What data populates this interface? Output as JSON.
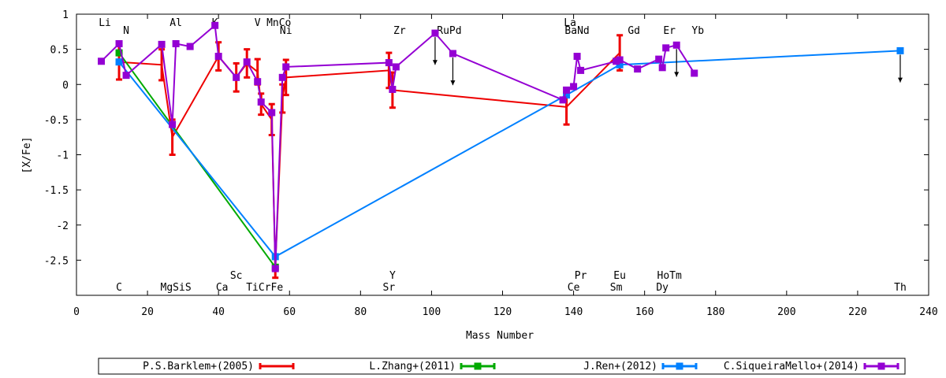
{
  "chart_data": {
    "type": "line",
    "xlabel": "Mass Number",
    "ylabel": "[X/Fe]",
    "xlim": [
      0,
      240
    ],
    "ylim": [
      -3,
      1
    ],
    "xticks": [
      0,
      20,
      40,
      60,
      80,
      100,
      120,
      140,
      160,
      180,
      200,
      220,
      240
    ],
    "yticks": [
      1,
      0.5,
      0,
      -0.5,
      -1,
      -1.5,
      -2,
      -2.5
    ],
    "ytick_labels": [
      "1",
      "0.5",
      "0",
      "-0.5",
      "-1",
      "-1.5",
      "-2",
      "-2.5"
    ],
    "legend_position": "bottom",
    "element_labels_top": [
      {
        "text": "Li",
        "x": 8,
        "row": 1
      },
      {
        "text": "N",
        "x": 14,
        "row": 2
      },
      {
        "text": "Al",
        "x": 28,
        "row": 1
      },
      {
        "text": "K",
        "x": 39,
        "row": 1
      },
      {
        "text": "V",
        "x": 51,
        "row": 1
      },
      {
        "text": "MnCo",
        "x": 57,
        "row": 1
      },
      {
        "text": "Ni",
        "x": 59,
        "row": 2
      },
      {
        "text": "Zr",
        "x": 91,
        "row": 2
      },
      {
        "text": "RuPd",
        "x": 105,
        "row": 2
      },
      {
        "text": "La",
        "x": 139,
        "row": 1
      },
      {
        "text": "BaNd",
        "x": 141,
        "row": 2
      },
      {
        "text": "Gd",
        "x": 157,
        "row": 2
      },
      {
        "text": "Er",
        "x": 167,
        "row": 2
      },
      {
        "text": "Yb",
        "x": 175,
        "row": 2
      }
    ],
    "element_labels_bottom": [
      {
        "text": "Sc",
        "x": 45,
        "row": 1
      },
      {
        "text": "Y",
        "x": 89,
        "row": 1
      },
      {
        "text": "Pr",
        "x": 142,
        "row": 1
      },
      {
        "text": "Eu",
        "x": 153,
        "row": 1
      },
      {
        "text": "HoTm",
        "x": 167,
        "row": 1
      },
      {
        "text": "C",
        "x": 12,
        "row": 2
      },
      {
        "text": "MgSiS",
        "x": 28,
        "row": 2
      },
      {
        "text": "Ca",
        "x": 41,
        "row": 2
      },
      {
        "text": "TiCrFe",
        "x": 53,
        "row": 2
      },
      {
        "text": "Sr",
        "x": 88,
        "row": 2
      },
      {
        "text": "Ce",
        "x": 140,
        "row": 2
      },
      {
        "text": "Sm",
        "x": 152,
        "row": 2
      },
      {
        "text": "Dy",
        "x": 165,
        "row": 2
      },
      {
        "text": "Th",
        "x": 232,
        "row": 2
      }
    ],
    "series": [
      {
        "name": "P.S.Barklem+(2005)",
        "color": "#ee0000",
        "marker": "none",
        "points": [
          {
            "x": 12,
            "y": 0.32,
            "err": 0.25
          },
          {
            "x": 24,
            "y": 0.28,
            "err": 0.22
          },
          {
            "x": 27,
            "y": -0.75,
            "err": 0.25
          },
          {
            "x": 40,
            "y": 0.4,
            "err": 0.2
          },
          {
            "x": 45,
            "y": 0.1,
            "err": 0.2
          },
          {
            "x": 48,
            "y": 0.3,
            "err": 0.2
          },
          {
            "x": 51,
            "y": 0.18,
            "err": 0.18
          },
          {
            "x": 52,
            "y": -0.28,
            "err": 0.15
          },
          {
            "x": 55,
            "y": -0.5,
            "err": 0.22
          },
          {
            "x": 56,
            "y": -2.6,
            "err": 0.15
          },
          {
            "x": 58,
            "y": -0.2,
            "err": 0.2
          },
          {
            "x": 59,
            "y": 0.1,
            "err": 0.25
          },
          {
            "x": 88,
            "y": 0.2,
            "err": 0.25
          },
          {
            "x": 89,
            "y": -0.08,
            "err": 0.25
          },
          {
            "x": 138,
            "y": -0.32,
            "err": 0.25
          },
          {
            "x": 153,
            "y": 0.45,
            "err": 0.25
          }
        ]
      },
      {
        "name": "L.Zhang+(2011)",
        "color": "#00aa00",
        "marker": "square",
        "points": [
          {
            "x": 12,
            "y": 0.45
          },
          {
            "x": 56,
            "y": -2.6
          }
        ]
      },
      {
        "name": "J.Ren+(2012)",
        "color": "#0080ff",
        "marker": "square",
        "points": [
          {
            "x": 12,
            "y": 0.32
          },
          {
            "x": 56,
            "y": -2.45
          },
          {
            "x": 138,
            "y": -0.15
          },
          {
            "x": 153,
            "y": 0.28
          },
          {
            "x": 232,
            "y": 0.48
          }
        ]
      },
      {
        "name": "C.SiqueiraMello+(2014)",
        "color": "#9400d3",
        "marker": "square",
        "points": [
          {
            "x": 7,
            "y": 0.33
          },
          {
            "x": 12,
            "y": 0.58
          },
          {
            "x": 14,
            "y": 0.13
          },
          {
            "x": 24,
            "y": 0.57
          },
          {
            "x": 27,
            "y": -0.57
          },
          {
            "x": 28,
            "y": 0.58
          },
          {
            "x": 32,
            "y": 0.54
          },
          {
            "x": 39,
            "y": 0.84
          },
          {
            "x": 40,
            "y": 0.4
          },
          {
            "x": 45,
            "y": 0.1
          },
          {
            "x": 48,
            "y": 0.32
          },
          {
            "x": 51,
            "y": 0.04
          },
          {
            "x": 52,
            "y": -0.25
          },
          {
            "x": 55,
            "y": -0.4
          },
          {
            "x": 56,
            "y": -2.62
          },
          {
            "x": 58,
            "y": 0.1
          },
          {
            "x": 59,
            "y": 0.25
          },
          {
            "x": 88,
            "y": 0.31
          },
          {
            "x": 89,
            "y": -0.07
          },
          {
            "x": 90,
            "y": 0.25
          },
          {
            "x": 101,
            "y": 0.73
          },
          {
            "x": 106,
            "y": 0.44
          },
          {
            "x": 137,
            "y": -0.22
          },
          {
            "x": 138,
            "y": -0.08
          },
          {
            "x": 140,
            "y": -0.03
          },
          {
            "x": 141,
            "y": 0.4
          },
          {
            "x": 142,
            "y": 0.2
          },
          {
            "x": 152,
            "y": 0.33
          },
          {
            "x": 153,
            "y": 0.35
          },
          {
            "x": 158,
            "y": 0.22
          },
          {
            "x": 164,
            "y": 0.36
          },
          {
            "x": 165,
            "y": 0.24
          },
          {
            "x": 166,
            "y": 0.52
          },
          {
            "x": 169,
            "y": 0.56
          },
          {
            "x": 174,
            "y": 0.16
          }
        ]
      }
    ],
    "upper_limits": [
      {
        "x": 101,
        "y": 0.73
      },
      {
        "x": 106,
        "y": 0.44
      },
      {
        "x": 169,
        "y": 0.56
      },
      {
        "x": 232,
        "y": 0.48
      }
    ]
  }
}
